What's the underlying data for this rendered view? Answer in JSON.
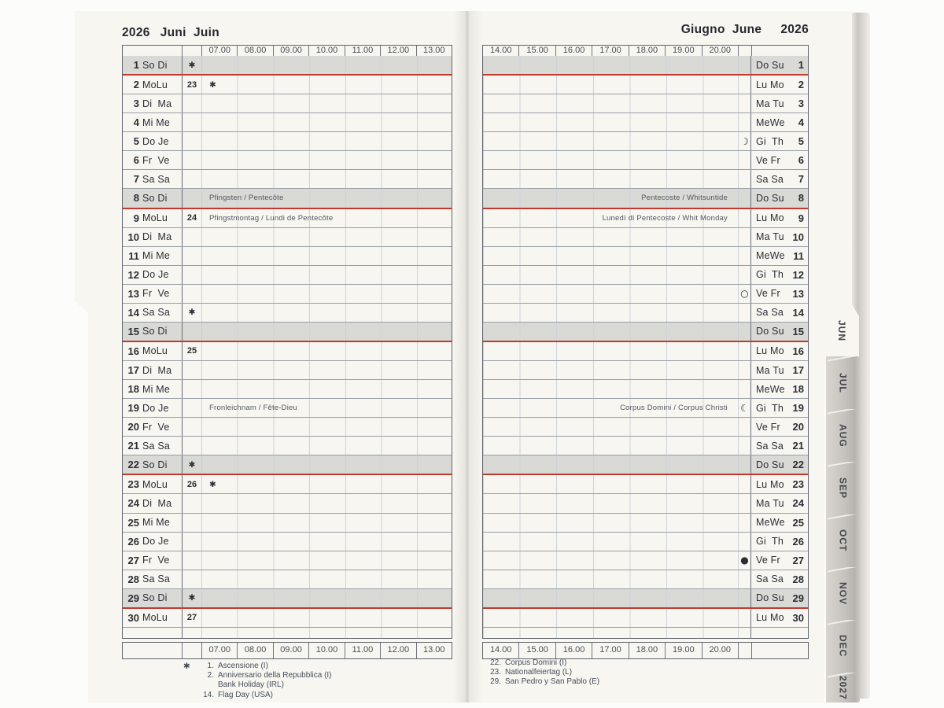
{
  "left_page": {
    "year": "2026",
    "month_names": "Juni  Juin",
    "hours": [
      "07.00",
      "08.00",
      "09.00",
      "10.00",
      "11.00",
      "12.00",
      "13.00"
    ],
    "footnotes": [
      {
        "star": "✱",
        "num": "1.",
        "text": "Ascensione (I)"
      },
      {
        "star": "",
        "num": "2.",
        "text": "Anniversario della Repubblica (I)"
      },
      {
        "star": "",
        "num": "",
        "text": "Bank Holiday (IRL)"
      },
      {
        "star": "",
        "num": "14.",
        "text": "Flag Day (USA)"
      }
    ]
  },
  "right_page": {
    "month_names": "Giugno  June",
    "year": "2026",
    "hours": [
      "14.00",
      "15.00",
      "16.00",
      "17.00",
      "18.00",
      "19.00",
      "20.00"
    ],
    "footnotes": [
      {
        "num": "22.",
        "text": "Corpus Domini (I)"
      },
      {
        "num": "23.",
        "text": "Nationalfeiertag (L)"
      },
      {
        "num": "29.",
        "text": "San Pedro y San Pablo (E)"
      }
    ]
  },
  "tabs": {
    "current": "JUN",
    "others": [
      "JUL",
      "AUG",
      "SEP",
      "OCT",
      "NOV",
      "DEC",
      "2027"
    ]
  },
  "days": [
    {
      "n": 1,
      "left": "So Di",
      "right": "Do Su",
      "sunday": true,
      "week_mark": "✱"
    },
    {
      "n": 2,
      "left": "MoLu",
      "right": "Lu Mo",
      "week": "23",
      "hour_mark": "✱"
    },
    {
      "n": 3,
      "left": "Di  Ma",
      "right": "Ma Tu"
    },
    {
      "n": 4,
      "left": "Mi Me",
      "right": "MeWe"
    },
    {
      "n": 5,
      "left": "Do Je",
      "right": "Gi  Th",
      "moon": {
        "name": "first-quarter-moon-icon",
        "glyph": "☽",
        "solid": true
      }
    },
    {
      "n": 6,
      "left": "Fr  Ve",
      "right": "Ve Fr"
    },
    {
      "n": 7,
      "left": "Sa Sa",
      "right": "Sa Sa"
    },
    {
      "n": 8,
      "left": "So Di",
      "right": "Do Su",
      "sunday": true,
      "holiday_left": "Pfingsten / Pentecôte",
      "holiday_right": "Pentecoste / Whitsuntide"
    },
    {
      "n": 9,
      "left": "MoLu",
      "right": "Lu Mo",
      "week": "24",
      "holiday_left": "Pfingstmontag / Lundi de Pentecôte",
      "holiday_right": "Lunedì di Pentecoste / Whit Monday"
    },
    {
      "n": 10,
      "left": "Di  Ma",
      "right": "Ma Tu"
    },
    {
      "n": 11,
      "left": "Mi Me",
      "right": "MeWe"
    },
    {
      "n": 12,
      "left": "Do Je",
      "right": "Gi  Th"
    },
    {
      "n": 13,
      "left": "Fr  Ve",
      "right": "Ve Fr",
      "moon": {
        "name": "full-moon-icon",
        "glyph": "○"
      }
    },
    {
      "n": 14,
      "left": "Sa Sa",
      "right": "Sa Sa",
      "week_mark": "✱"
    },
    {
      "n": 15,
      "left": "So Di",
      "right": "Do Su",
      "sunday": true
    },
    {
      "n": 16,
      "left": "MoLu",
      "right": "Lu Mo",
      "week": "25"
    },
    {
      "n": 17,
      "left": "Di  Ma",
      "right": "Ma Tu"
    },
    {
      "n": 18,
      "left": "Mi Me",
      "right": "MeWe"
    },
    {
      "n": 19,
      "left": "Do Je",
      "right": "Gi  Th",
      "holiday_left": "Fronleichnam / Fête-Dieu",
      "holiday_right": "Corpus Domini / Corpus Christi",
      "moon": {
        "name": "last-quarter-moon-icon",
        "glyph": "☾"
      }
    },
    {
      "n": 20,
      "left": "Fr  Ve",
      "right": "Ve Fr"
    },
    {
      "n": 21,
      "left": "Sa Sa",
      "right": "Sa Sa"
    },
    {
      "n": 22,
      "left": "So Di",
      "right": "Do Su",
      "sunday": true,
      "week_mark": "✱"
    },
    {
      "n": 23,
      "left": "MoLu",
      "right": "Lu Mo",
      "week": "26",
      "hour_mark": "✱"
    },
    {
      "n": 24,
      "left": "Di  Ma",
      "right": "Ma Tu"
    },
    {
      "n": 25,
      "left": "Mi Me",
      "right": "MeWe"
    },
    {
      "n": 26,
      "left": "Do Je",
      "right": "Gi  Th"
    },
    {
      "n": 27,
      "left": "Fr  Ve",
      "right": "Ve Fr",
      "moon": {
        "name": "new-moon-icon",
        "glyph": "●"
      }
    },
    {
      "n": 28,
      "left": "Sa Sa",
      "right": "Sa Sa"
    },
    {
      "n": 29,
      "left": "So Di",
      "right": "Do Su",
      "sunday": true,
      "week_mark": "✱"
    },
    {
      "n": 30,
      "left": "MoLu",
      "right": "Lu Mo",
      "week": "27"
    }
  ],
  "colors": {
    "red_line": "#c13a30",
    "sunday_shade": "#d9d9d6",
    "page_bg": "#f7f6f1",
    "tab_band": "#c6c3be"
  }
}
